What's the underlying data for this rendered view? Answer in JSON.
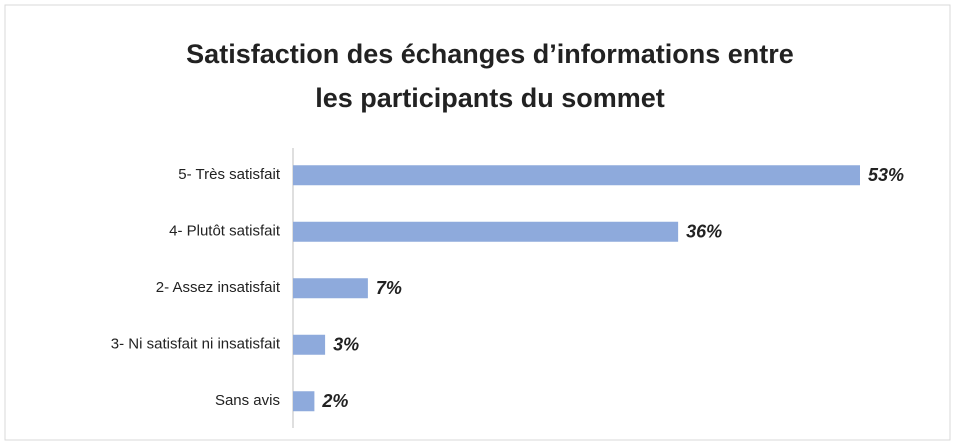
{
  "chart_data": {
    "type": "barh",
    "title": [
      "Satisfaction des échanges d’informations entre",
      "les participants du sommet"
    ],
    "categories": [
      "5- Très satisfait",
      "4- Plutôt satisfait",
      "2- Assez insatisfait",
      "3- Ni satisfait ni insatisfait",
      "Sans avis"
    ],
    "values": [
      53,
      36,
      7,
      3,
      2
    ],
    "value_labels": [
      "53%",
      "36%",
      "7%",
      "3%",
      "2%"
    ],
    "color": "#8eaadc"
  }
}
